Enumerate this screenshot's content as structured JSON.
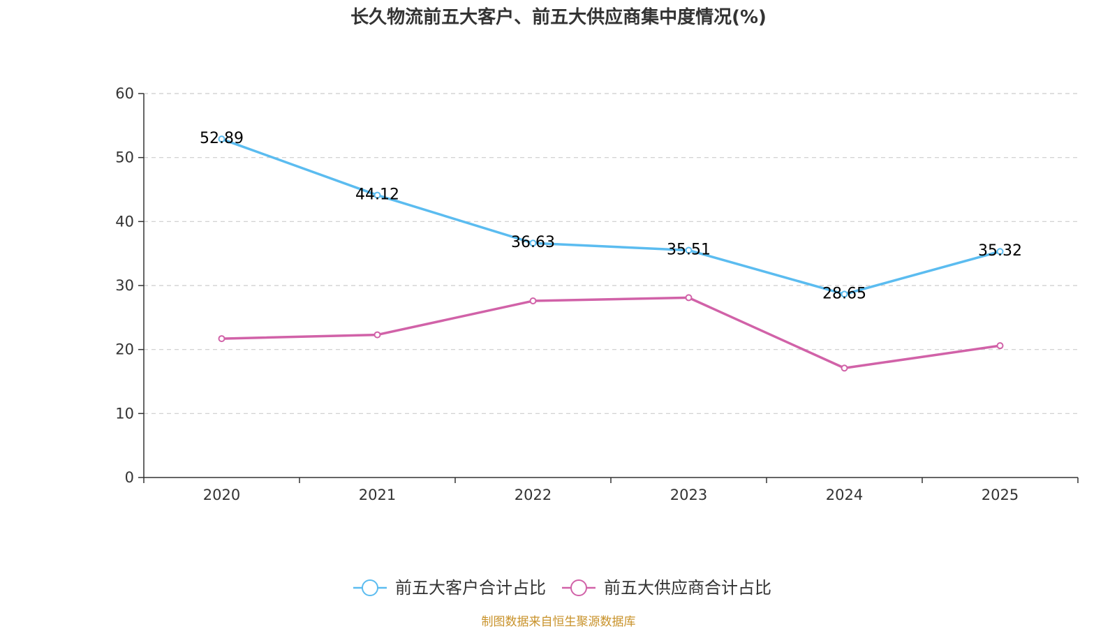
{
  "chart_data": {
    "type": "line",
    "title": "长久物流前五大客户、前五大供应商集中度情况(%)",
    "categories": [
      "2020",
      "2021",
      "2022",
      "2023",
      "2024",
      "2025"
    ],
    "ylim": [
      0,
      60
    ],
    "yticks": [
      0,
      10,
      20,
      30,
      40,
      50,
      60
    ],
    "grid": true,
    "legend_position": "bottom-center",
    "xlabel": "",
    "ylabel": "",
    "series": [
      {
        "name": "前五大客户合计占比",
        "color": "#5bbcf0",
        "values": [
          52.89,
          44.12,
          36.63,
          35.51,
          28.65,
          35.32
        ],
        "labels": [
          "52.89",
          "44.12",
          "36.63",
          "35.51",
          "28.65",
          "35.32"
        ],
        "show_labels": true
      },
      {
        "name": "前五大供应商合计占比",
        "color": "#d162a8",
        "values": [
          21.7,
          22.3,
          27.6,
          28.1,
          17.1,
          20.6
        ],
        "show_labels": false
      }
    ]
  },
  "source_note": "制图数据来自恒生聚源数据库"
}
